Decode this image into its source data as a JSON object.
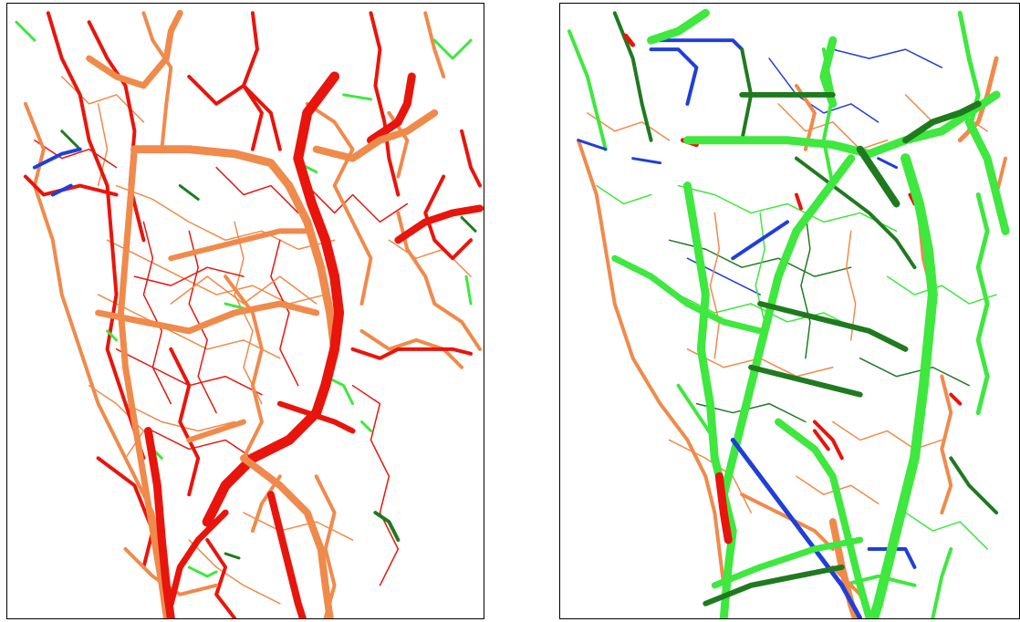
{
  "panels": [
    {
      "id": "left",
      "legend_colors": {
        "red": "#e8150c",
        "orange": "#f08a4b",
        "light_green": "#3ee83e",
        "dark_green": "#1f7a1f",
        "blue": "#1f3fd8"
      },
      "dominant_colors": [
        "red",
        "orange"
      ]
    },
    {
      "id": "right",
      "legend_colors": {
        "red": "#e8150c",
        "orange": "#f08a4b",
        "light_green": "#3ee83e",
        "dark_green": "#1f7a1f",
        "blue": "#1f3fd8"
      },
      "dominant_colors": [
        "light_green",
        "dark_green",
        "orange"
      ]
    }
  ]
}
